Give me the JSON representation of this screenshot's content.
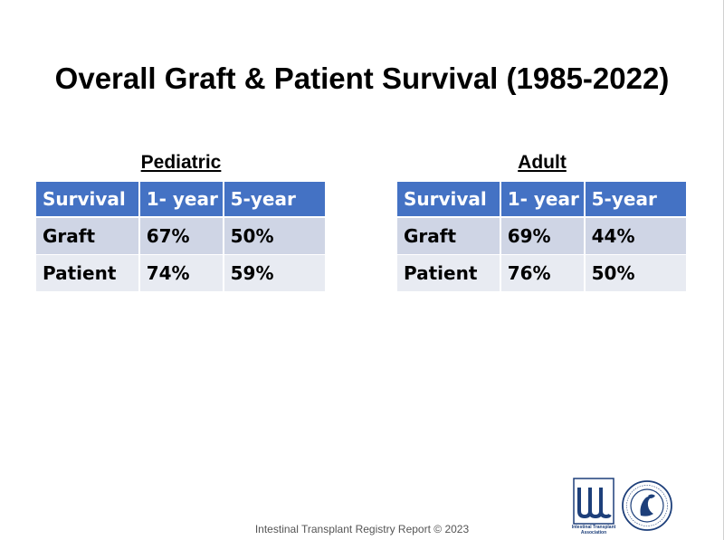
{
  "slide": {
    "title": "Overall Graft & Patient Survival (1985-2022)",
    "footer": "Intestinal Transplant Registry Report © 2023"
  },
  "tables": {
    "pediatric": {
      "heading": "Pediatric",
      "headers": [
        "Survival",
        "1- year",
        "5-year"
      ],
      "rows": [
        [
          "Graft",
          "67%",
          "50%"
        ],
        [
          "Patient",
          "74%",
          "59%"
        ]
      ]
    },
    "adult": {
      "heading": "Adult",
      "headers": [
        "Survival",
        "1- year",
        "5-year"
      ],
      "rows": [
        [
          "Graft",
          "69%",
          "44%"
        ],
        [
          "Patient",
          "76%",
          "50%"
        ]
      ]
    }
  },
  "logos": {
    "ita_caption": "Intestinal Transplant Association",
    "ts_name": "transplantation-society-seal"
  },
  "colors": {
    "header_bg": "#4472c4",
    "row_odd_bg": "#cfd5e5",
    "row_even_bg": "#e8ebf2",
    "logo_blue": "#1d3f7a"
  }
}
